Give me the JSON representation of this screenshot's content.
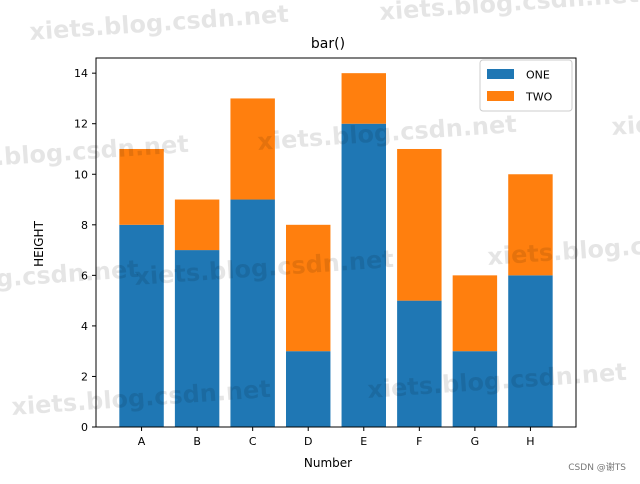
{
  "chart_data": {
    "type": "bar",
    "stacked": true,
    "title": "bar()",
    "xlabel": "Number",
    "ylabel": "HEIGHT",
    "categories": [
      "A",
      "B",
      "C",
      "D",
      "E",
      "F",
      "G",
      "H"
    ],
    "series": [
      {
        "name": "ONE",
        "color": "#1f77b4",
        "values": [
          8,
          7,
          9,
          3,
          12,
          5,
          3,
          6
        ]
      },
      {
        "name": "TWO",
        "color": "#ff7f0e",
        "values": [
          3,
          2,
          4,
          5,
          2,
          6,
          3,
          4
        ]
      }
    ],
    "ylim": [
      0,
      14.6
    ],
    "yticks": [
      0,
      2,
      4,
      6,
      8,
      10,
      12,
      14
    ],
    "grid": false,
    "legend_position": "top-right"
  },
  "watermark": "xiets.blog.csdn.net",
  "credit": "CSDN @谢TS"
}
